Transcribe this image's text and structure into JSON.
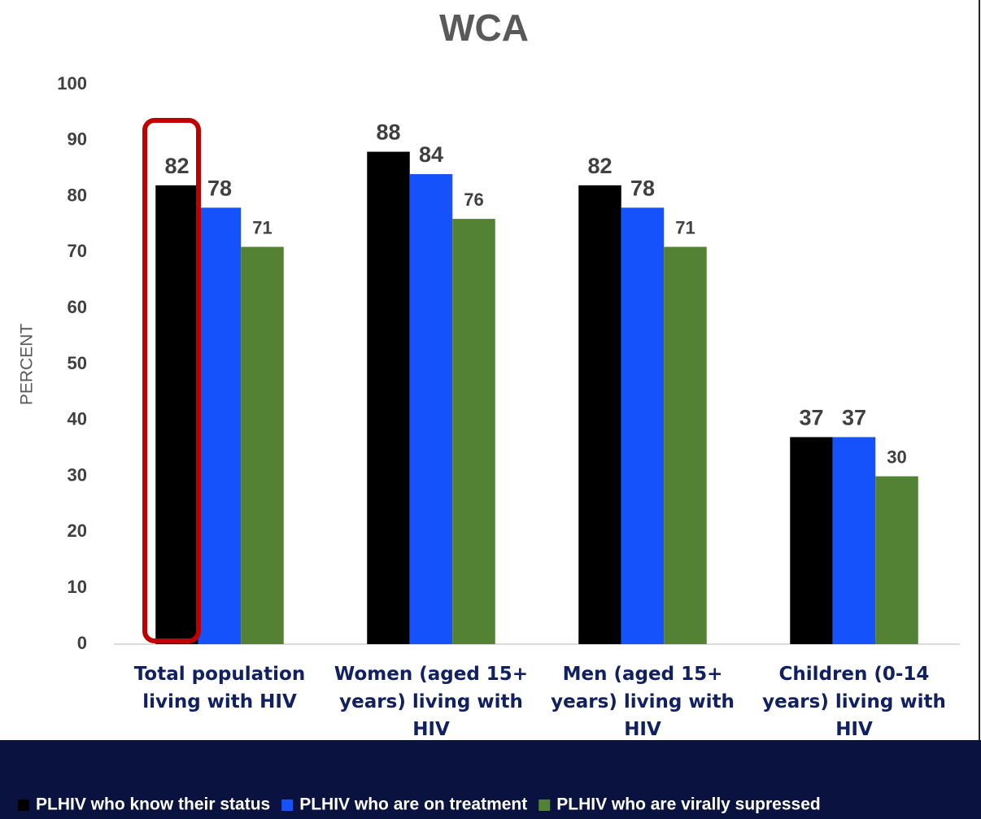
{
  "chart_data": {
    "type": "bar",
    "title": "WCA",
    "y_label": "PERCENT",
    "categories": [
      "Total population living with HIV",
      "Women (aged 15+ years) living with HIV",
      "Men (aged 15+ years) living with HIV",
      "Children (0-14 years) living with HIV"
    ],
    "series": [
      {
        "name": "PLHIV who know their status",
        "color": "#000000",
        "values": [
          82,
          88,
          82,
          37
        ]
      },
      {
        "name": "PLHIV who are on treatment",
        "color": "#1652fb",
        "values": [
          78,
          84,
          78,
          37
        ]
      },
      {
        "name": "PLHIV who are virally supressed",
        "color": "#548235",
        "values": [
          71,
          76,
          71,
          30
        ]
      }
    ],
    "ylim": [
      0,
      100
    ],
    "yticks": [
      0,
      10,
      20,
      30,
      40,
      50,
      60,
      70,
      80,
      90,
      100
    ],
    "grid": false,
    "legend": "bottom"
  }
}
